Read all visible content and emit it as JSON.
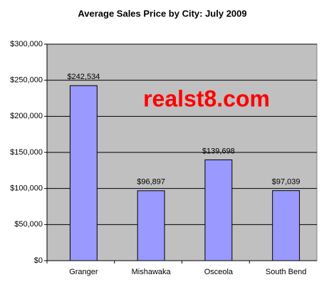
{
  "chart_data": {
    "type": "bar",
    "title": "Average Sales Price by City: July 2009",
    "annotation": "realst8.com",
    "categories": [
      "Granger",
      "Mishawaka",
      "Osceola",
      "South Bend"
    ],
    "values": [
      242534,
      96897,
      139698,
      97039
    ],
    "value_labels": [
      "$242,534",
      "$96,897",
      "$139,698",
      "$97,039"
    ],
    "color": "#9999ff",
    "ylim": [
      0,
      300000
    ],
    "yticks": [
      {
        "value": 0,
        "label": "$0"
      },
      {
        "value": 50000,
        "label": "$50,000"
      },
      {
        "value": 100000,
        "label": "$100,000"
      },
      {
        "value": 150000,
        "label": "$150,000"
      },
      {
        "value": 200000,
        "label": "$200,000"
      },
      {
        "value": 250000,
        "label": "$250,000"
      },
      {
        "value": 300000,
        "label": "$300,000"
      }
    ],
    "grid": true
  }
}
